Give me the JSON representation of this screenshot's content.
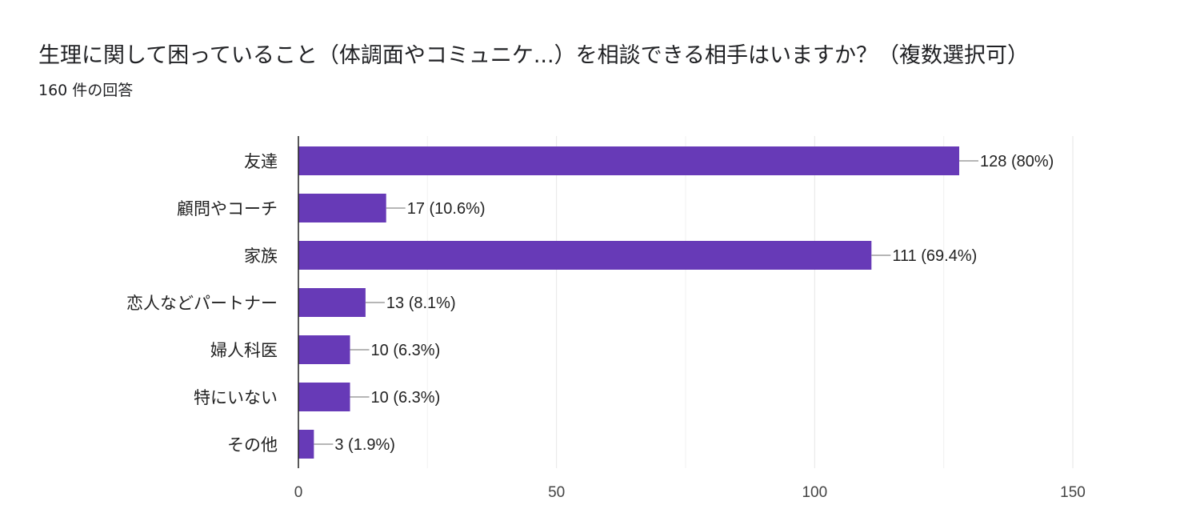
{
  "question": {
    "title": "生理に関して困っていること（体調面やコミュニケ...）を相談できる相手はいますか？（複数選択可）",
    "response_count": "160 件の回答"
  },
  "colors": {
    "bar": "#673ab7",
    "grid": "#e6e6e6",
    "axis": "#222222",
    "connector": "#9e9e9e"
  },
  "chart_data": {
    "type": "bar",
    "orientation": "horizontal",
    "title": "生理に関して困っていること（体調面やコミュニケ...）を相談できる相手はいますか？（複数選択可）",
    "categories": [
      "友達",
      "顧問やコーチ",
      "家族",
      "恋人などパートナー",
      "婦人科医",
      "特にいない",
      "その他"
    ],
    "values": [
      128,
      17,
      111,
      13,
      10,
      10,
      3
    ],
    "labels": [
      "128 (80%)",
      "17 (10.6%)",
      "111 (69.4%)",
      "13 (8.1%)",
      "10 (6.3%)",
      "10 (6.3%)",
      "3 (1.9%)"
    ],
    "xlim": [
      0,
      150
    ],
    "ticks": [
      0,
      50,
      100,
      150
    ],
    "tick_labels": [
      "0",
      "50",
      "100",
      "150"
    ],
    "minor_grid": [
      25,
      75,
      125
    ],
    "xlabel": "",
    "ylabel": "",
    "grid": true
  }
}
